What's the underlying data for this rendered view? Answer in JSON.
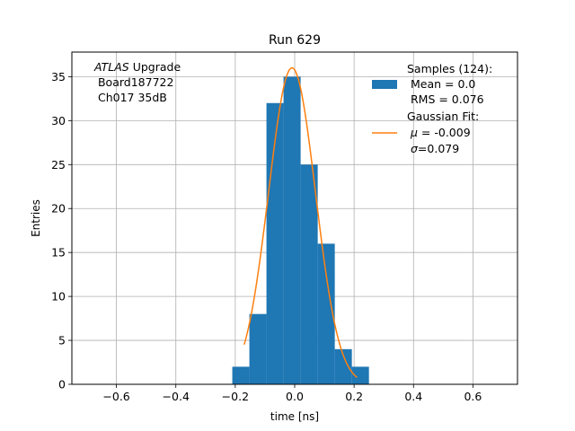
{
  "chart_data": {
    "type": "bar",
    "title": "Run 629",
    "xlabel": "time [ns]",
    "ylabel": "Entries",
    "xlim": [
      -0.75,
      0.75
    ],
    "ylim": [
      0,
      37.8
    ],
    "xticks": [
      -0.6,
      -0.4,
      -0.2,
      0.0,
      0.2,
      0.4,
      0.6
    ],
    "xtick_labels": [
      "−0.6",
      "−0.4",
      "−0.2",
      "0.0",
      "0.2",
      "0.4",
      "0.6"
    ],
    "yticks": [
      0,
      5,
      10,
      15,
      20,
      25,
      30,
      35
    ],
    "ytick_labels": [
      "0",
      "5",
      "10",
      "15",
      "20",
      "25",
      "30",
      "35"
    ],
    "grid": true,
    "legend_position": "top-right",
    "colors": {
      "histogram": "#1f77b4",
      "fit": "#ff7f0e",
      "grid": "#b0b0b0"
    },
    "annotation": {
      "line1_italic": "ATLAS",
      "line1_rest": " Upgrade",
      "line2": " Board187722",
      "line3": " Ch017 35dB"
    },
    "histogram": {
      "bin_edges": [
        -0.21,
        -0.1525,
        -0.095,
        -0.0375,
        0.02,
        0.0775,
        0.135,
        0.1925,
        0.25
      ],
      "values": [
        2,
        8,
        32,
        35,
        25,
        16,
        4,
        2
      ]
    },
    "fit": {
      "type": "gaussian",
      "amplitude": 36,
      "mu": -0.009,
      "sigma": 0.079,
      "x_range": [
        -0.17,
        0.21
      ]
    },
    "legend": {
      "samples": {
        "line1": "Samples (124):",
        "line2": " Mean = 0.0",
        "line3": " RMS = 0.076"
      },
      "fit": {
        "line1": "Gaussian Fit:",
        "line2_sym": "μ",
        "line2_rest": " = -0.009",
        "line3_sym": "σ",
        "line3_rest": "=0.079"
      }
    }
  }
}
